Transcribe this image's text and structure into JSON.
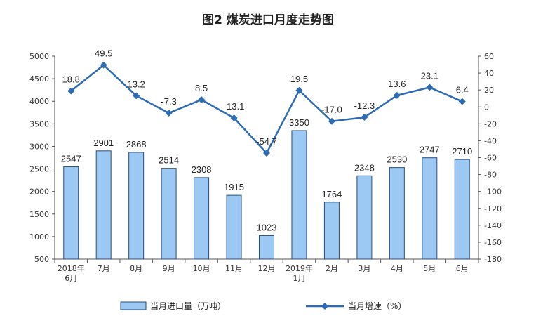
{
  "chart_data": {
    "type": "bar+line",
    "title": "图2  煤炭进口月度走势图",
    "categories": [
      [
        "2018年",
        "6月"
      ],
      [
        "7月"
      ],
      [
        "8月"
      ],
      [
        "9月"
      ],
      [
        "10月"
      ],
      [
        "11月"
      ],
      [
        "12月"
      ],
      [
        "2019年",
        "1月"
      ],
      [
        "2月"
      ],
      [
        "3月"
      ],
      [
        "4月"
      ],
      [
        "5月"
      ],
      [
        "6月"
      ]
    ],
    "series": [
      {
        "name": "当月进口量（万吨）",
        "type": "bar",
        "axis": "left",
        "values": [
          2547,
          2901,
          2868,
          2514,
          2308,
          1915,
          1023,
          3350,
          1764,
          2348,
          2530,
          2747,
          2710
        ]
      },
      {
        "name": "当月增速（%）",
        "type": "line",
        "axis": "right",
        "values": [
          18.8,
          49.5,
          13.2,
          -7.3,
          8.5,
          -13.1,
          -54.7,
          19.5,
          -17.0,
          -12.3,
          13.6,
          23.1,
          6.4
        ]
      }
    ],
    "left_axis": {
      "min": 500,
      "max": 5000,
      "step": 500
    },
    "right_axis": {
      "min": -180,
      "max": 60,
      "step": 20
    },
    "bar_labels": [
      "2547",
      "2901",
      "2868",
      "2514",
      "2308",
      "1915",
      "1023",
      "3350",
      "1764",
      "2348",
      "2530",
      "2747",
      "2710"
    ],
    "line_labels": [
      "18.8",
      "49.5",
      "13.2",
      "-7.3",
      "8.5",
      "-13.1",
      "-54.7",
      "19.5",
      "-17.0",
      "-12.3",
      "13.6",
      "23.1",
      "6.4"
    ],
    "legend_position": "bottom",
    "colors": {
      "bar_fill": "#9cc8f4",
      "bar_stroke": "#2a4d7a",
      "line": "#2e6bb5"
    }
  }
}
